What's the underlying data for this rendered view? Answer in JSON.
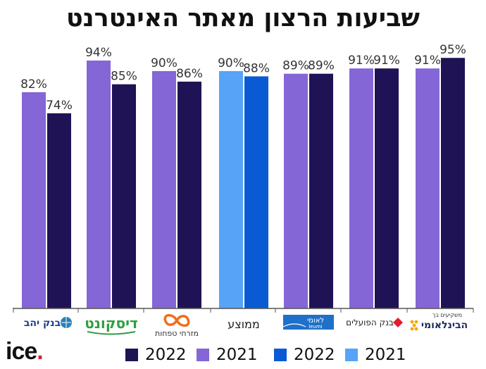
{
  "title": "שביעות הרצון מאתר האינטרנט",
  "brand": {
    "name": "ice",
    "dot": "."
  },
  "colors": {
    "y2022": "#1f1355",
    "y2021": "#8466d6",
    "avg2022": "#0a5bd3",
    "avg2021": "#56a3f7",
    "axis": "#555555"
  },
  "legend": [
    {
      "label": "2022",
      "color": "#1f1355"
    },
    {
      "label": "2021",
      "color": "#8466d6"
    },
    {
      "label": "2022",
      "color": "#0a5bd3"
    },
    {
      "label": "2021",
      "color": "#56a3f7"
    }
  ],
  "chart_data": {
    "type": "bar",
    "title": "שביעות הרצון מאתר האינטרנט",
    "categories": [
      "בנק יהב",
      "דיסקונט",
      "מזרחי טפחות",
      "ממוצע",
      "לאומי",
      "בנק הפועלים",
      "הבינלאומי"
    ],
    "category_subtexts": [
      "",
      "",
      "",
      "",
      "leumi",
      "",
      "משקיעים בך"
    ],
    "series": [
      {
        "name": "2021",
        "values": [
          82,
          94,
          90,
          90,
          89,
          91,
          91
        ],
        "labels": [
          "82%",
          "94%",
          "90%",
          "90%",
          "89%",
          "91%",
          "91%"
        ]
      },
      {
        "name": "2022",
        "values": [
          74,
          85,
          86,
          88,
          89,
          91,
          95
        ],
        "labels": [
          "74%",
          "85%",
          "86%",
          "88%",
          "89%",
          "91%",
          "95%"
        ]
      }
    ],
    "highlight_category": "ממוצע",
    "ylim": [
      0,
      100
    ],
    "grid": false,
    "legend_position": "bottom"
  }
}
